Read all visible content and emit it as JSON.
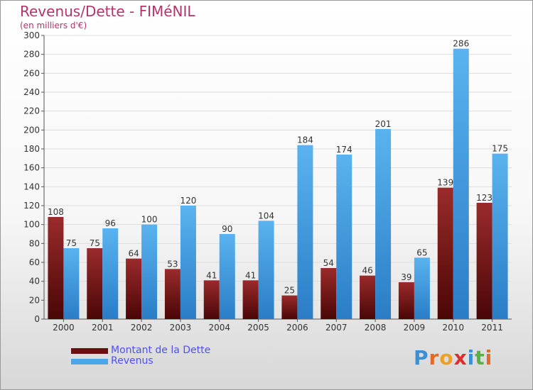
{
  "header": {
    "title": "Revenus/Dette - FIMéNIL",
    "subtitle": "(en milliers d'€)"
  },
  "legend": {
    "debt_label": "Montant de la Dette",
    "revenue_label": "Revenus"
  },
  "logo": {
    "text": "Proxiti",
    "letters": [
      "P",
      "r",
      "o",
      "x",
      "i",
      "t",
      "i"
    ],
    "colors": [
      "#3a8fd8",
      "#e06a2a",
      "#f0a020",
      "#d83030",
      "#3a8fd8",
      "#5ab040",
      "#e06a2a"
    ]
  },
  "colors": {
    "debt": "#7a1a1a",
    "revenue": "#4da6e6",
    "title": "#b5336a",
    "legend_text": "#4f4fff"
  },
  "chart_data": {
    "type": "bar",
    "title": "Revenus/Dette - FIMéNIL",
    "subtitle": "(en milliers d'€)",
    "categories": [
      "2000",
      "2001",
      "2002",
      "2003",
      "2004",
      "2005",
      "2006",
      "2007",
      "2008",
      "2009",
      "2010",
      "2011"
    ],
    "series": [
      {
        "name": "Montant de la Dette",
        "values": [
          108,
          75,
          64,
          53,
          41,
          41,
          25,
          54,
          46,
          39,
          139,
          123
        ]
      },
      {
        "name": "Revenus",
        "values": [
          75,
          96,
          100,
          120,
          90,
          104,
          184,
          174,
          201,
          65,
          286,
          175
        ]
      }
    ],
    "ylim": [
      0,
      300
    ],
    "yticks": [
      0,
      20,
      40,
      60,
      80,
      100,
      120,
      140,
      160,
      180,
      200,
      220,
      240,
      260,
      280,
      300
    ],
    "grid": true,
    "legend_position": "bottom-left"
  }
}
